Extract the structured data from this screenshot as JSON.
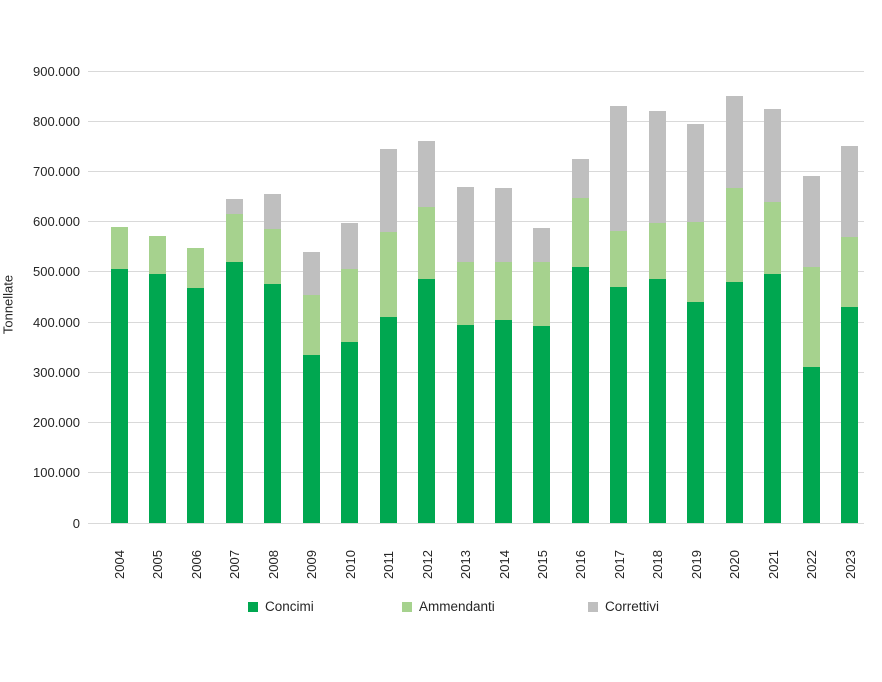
{
  "chart_data": {
    "type": "bar",
    "stacked": true,
    "title": "",
    "xlabel": "",
    "ylabel": "Tonnellate",
    "ylim": [
      0,
      900000
    ],
    "ytick_step": 100000,
    "ytick_labels": [
      "0",
      "100.000",
      "200.000",
      "300.000",
      "400.000",
      "500.000",
      "600.000",
      "700.000",
      "800.000",
      "900.000"
    ],
    "grid": true,
    "legend_position": "bottom",
    "categories": [
      "2004",
      "2005",
      "2006",
      "2007",
      "2008",
      "2009",
      "2010",
      "2011",
      "2012",
      "2013",
      "2014",
      "2015",
      "2016",
      "2017",
      "2018",
      "2019",
      "2020",
      "2021",
      "2022",
      "2023"
    ],
    "series": [
      {
        "name": "Concimi",
        "color": "#00a750",
        "values": [
          505000,
          495000,
          468000,
          520000,
          475000,
          335000,
          360000,
          410000,
          485000,
          395000,
          405000,
          393000,
          510000,
          470000,
          486000,
          440000,
          480000,
          495000,
          310000,
          430000
        ]
      },
      {
        "name": "Ammendanti",
        "color": "#a6d28e",
        "values": [
          85000,
          77000,
          80000,
          95000,
          110000,
          120000,
          145000,
          170000,
          145000,
          125000,
          115000,
          127000,
          138000,
          112000,
          112000,
          160000,
          188000,
          145000,
          200000,
          140000
        ]
      },
      {
        "name": "Correttivi",
        "color": "#bfbfbf",
        "values": [
          0,
          0,
          0,
          30000,
          70000,
          85000,
          93000,
          165000,
          130000,
          150000,
          148000,
          68000,
          76000,
          248000,
          222000,
          195000,
          182000,
          185000,
          180000,
          180000
        ]
      }
    ]
  },
  "layout_colors": {
    "gridline": "#d9d9d9",
    "text": "#262626",
    "background": "#ffffff"
  }
}
